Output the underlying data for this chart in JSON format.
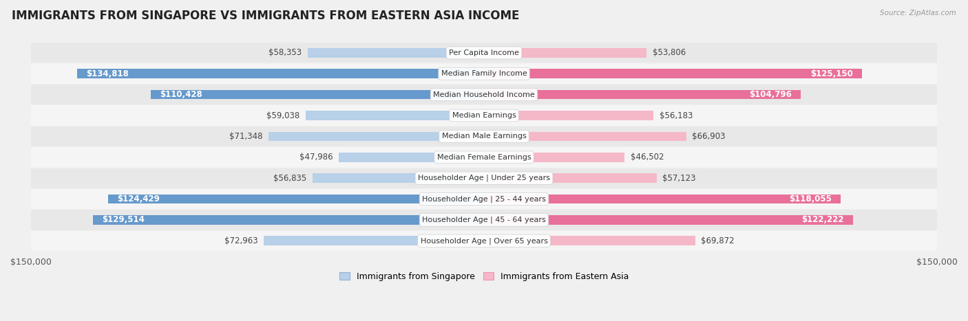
{
  "title": "IMMIGRANTS FROM SINGAPORE VS IMMIGRANTS FROM EASTERN ASIA INCOME",
  "source": "Source: ZipAtlas.com",
  "categories": [
    "Per Capita Income",
    "Median Family Income",
    "Median Household Income",
    "Median Earnings",
    "Median Male Earnings",
    "Median Female Earnings",
    "Householder Age | Under 25 years",
    "Householder Age | 25 - 44 years",
    "Householder Age | 45 - 64 years",
    "Householder Age | Over 65 years"
  ],
  "singapore_values": [
    58353,
    134818,
    110428,
    59038,
    71348,
    47986,
    56835,
    124429,
    129514,
    72963
  ],
  "eastern_asia_values": [
    53806,
    125150,
    104796,
    56183,
    66903,
    46502,
    57123,
    118055,
    122222,
    69872
  ],
  "singapore_color_light": "#b8d0e8",
  "singapore_color_dark": "#6699cc",
  "eastern_asia_color_light": "#f5b8c8",
  "eastern_asia_color_dark": "#e8709a",
  "bar_height": 0.45,
  "max_value": 150000,
  "background_color": "#f0f0f0",
  "row_color_odd": "#e8e8e8",
  "row_color_even": "#f5f5f5",
  "row_separator_color": "#ffffff",
  "label_fontsize": 8.5,
  "title_fontsize": 12,
  "value_label_threshold": 90000,
  "eastern_asia_118055": 118055
}
